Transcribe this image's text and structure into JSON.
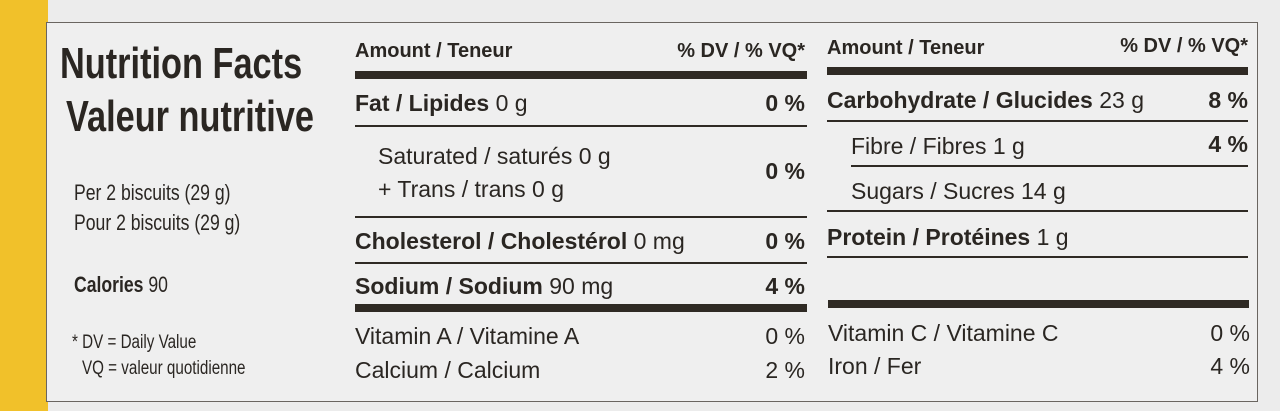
{
  "colors": {
    "background_yellow": "#f1c12a",
    "label": "#efefef",
    "ink": "#2a2622"
  },
  "left": {
    "title_en": "Nutrition Facts",
    "title_fr": "Valeur nutritive",
    "serving_en": "Per 2 biscuits (29 g)",
    "serving_fr": "Pour 2 biscuits (29 g)",
    "calories_label": "Calories",
    "calories_value": "90",
    "footnote_dv": "* DV = Daily Value",
    "footnote_vq": "VQ = valeur quotidienne"
  },
  "middle": {
    "header_amount": "Amount / Teneur",
    "header_dv": "% DV / % VQ*",
    "fat_label": "Fat / Lipides",
    "fat_amount": "0 g",
    "fat_dv": "0 %",
    "saturated": "Saturated / saturés 0 g",
    "trans": "+ Trans / trans 0 g",
    "sat_trans_dv": "0 %",
    "cholesterol_label": "Cholesterol / Cholestérol",
    "cholesterol_amount": "0 mg",
    "cholesterol_dv": "0 %",
    "sodium_label": "Sodium / Sodium",
    "sodium_amount": "90 mg",
    "sodium_dv": "4 %",
    "vitamin_a": "Vitamin A / Vitamine A",
    "vitamin_a_dv": "0 %",
    "calcium": "Calcium / Calcium",
    "calcium_dv": "2 %"
  },
  "right": {
    "header_amount": "Amount / Teneur",
    "header_dv": "% DV / % VQ*",
    "carb_label": "Carbohydrate / Glucides",
    "carb_amount": "23 g",
    "carb_dv": "8 %",
    "fibre": "Fibre / Fibres 1 g",
    "fibre_dv": "4 %",
    "sugars": "Sugars / Sucres 14 g",
    "protein_label": "Protein / Protéines",
    "protein_amount": "1 g",
    "vitamin_c": "Vitamin C / Vitamine C",
    "vitamin_c_dv": "0 %",
    "iron": "Iron / Fer",
    "iron_dv": "4 %"
  }
}
